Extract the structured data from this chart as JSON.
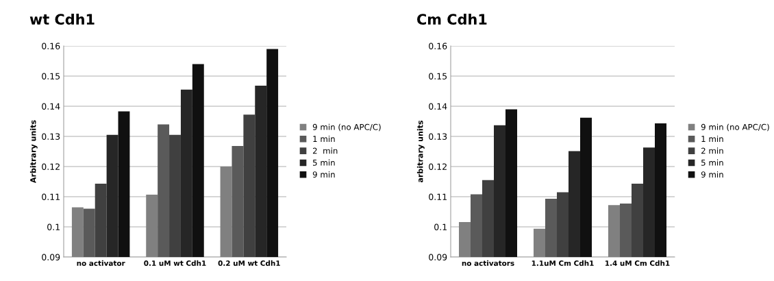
{
  "chart_data": [
    {
      "type": "bar",
      "title": "wt Cdh1",
      "ylabel": "Arbitrary units",
      "categories": [
        "no activator",
        "0.1 uM wt Cdh1",
        "0.2 uM wt Cdh1"
      ],
      "series": [
        {
          "name": "9 min (no APC/C)",
          "color": "#808080",
          "values": [
            0.1065,
            0.1107,
            0.12
          ]
        },
        {
          "name": "1 min",
          "color": "#5a5a5a",
          "values": [
            0.106,
            0.134,
            0.1268
          ]
        },
        {
          "name": "2  min",
          "color": "#404040",
          "values": [
            0.1143,
            0.1305,
            0.1372
          ]
        },
        {
          "name": "5 min",
          "color": "#262626",
          "values": [
            0.1305,
            0.1455,
            0.1468
          ]
        },
        {
          "name": "9 min",
          "color": "#101010",
          "values": [
            0.1383,
            0.154,
            0.159
          ]
        }
      ],
      "ylim": [
        0.09,
        0.16
      ],
      "yticks": [
        0.09,
        0.1,
        0.11,
        0.12,
        0.13,
        0.14,
        0.15,
        0.16
      ],
      "grid": "y",
      "legend": "right"
    },
    {
      "type": "bar",
      "title": "Cm Cdh1",
      "ylabel": "arbitrary units",
      "categories": [
        "no activators",
        "1.1uM Cm Cdh1",
        "1.4 uM Cm Cdh1"
      ],
      "series": [
        {
          "name": "9 min (no APC/C)",
          "color": "#808080",
          "values": [
            0.1016,
            0.0994,
            0.1072
          ]
        },
        {
          "name": "1 min",
          "color": "#5a5a5a",
          "values": [
            0.1108,
            0.1093,
            0.1077
          ]
        },
        {
          "name": "2 min",
          "color": "#404040",
          "values": [
            0.1155,
            0.1115,
            0.1143
          ]
        },
        {
          "name": "5 min",
          "color": "#262626",
          "values": [
            0.1337,
            0.1251,
            0.1263
          ]
        },
        {
          "name": "9 min",
          "color": "#101010",
          "values": [
            0.139,
            0.1362,
            0.1343
          ]
        }
      ],
      "ylim": [
        0.09,
        0.16
      ],
      "yticks": [
        0.09,
        0.1,
        0.11,
        0.12,
        0.13,
        0.14,
        0.15,
        0.16
      ],
      "grid": "y",
      "legend": "right"
    }
  ]
}
